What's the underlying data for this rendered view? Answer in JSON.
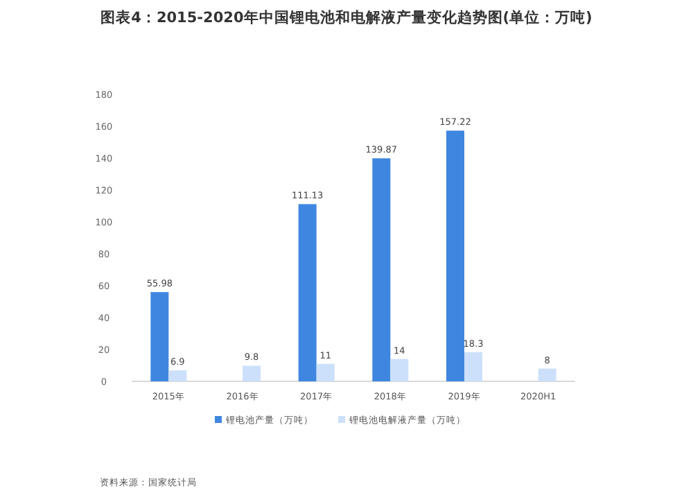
{
  "chart_data": {
    "type": "bar",
    "title": "图表4：2015-2020年中国锂电池和电解液产量变化趋势图(单位：万吨)",
    "categories": [
      "2015年",
      "2016年",
      "2017年",
      "2018年",
      "2019年",
      "2020H1"
    ],
    "series": [
      {
        "name": "锂电池产量（万吨）",
        "color": "#3f86e0",
        "values": [
          55.98,
          null,
          111.13,
          139.87,
          157.22,
          null
        ]
      },
      {
        "name": "锂电池电解液产量（万吨）",
        "color": "#cce0fb",
        "values": [
          6.9,
          9.8,
          11,
          14,
          18.3,
          8
        ]
      }
    ],
    "ylim": [
      0,
      180
    ],
    "yticks": [
      0,
      20,
      40,
      60,
      80,
      100,
      120,
      140,
      160,
      180
    ],
    "grid": false,
    "legend": "bottom",
    "data_labels": true,
    "annotations": [
      "资料来源：国家统计局"
    ]
  }
}
